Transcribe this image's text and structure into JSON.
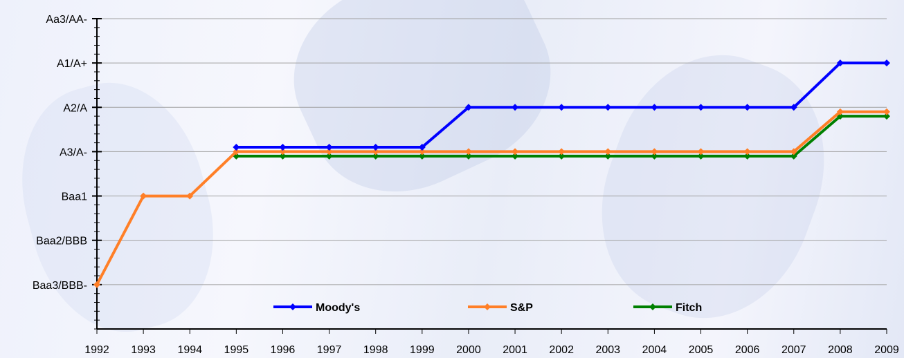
{
  "chart_data": {
    "type": "line",
    "title": "",
    "xlabel": "",
    "ylabel": "",
    "x": [
      "1992",
      "1993",
      "1994",
      "1995",
      "1996",
      "1997",
      "1998",
      "1999",
      "2000",
      "2001",
      "2002",
      "2003",
      "2004",
      "2005",
      "2006",
      "2007",
      "2008",
      "2009"
    ],
    "y_ticks": [
      "Baa3/BBB-",
      "Baa2/BBB",
      "Baa1",
      "A3/A-",
      "A2/A",
      "A1/A+",
      "Aa3/AA-"
    ],
    "y_scale_note": "rating notches, Baa3/BBB- = 1 … Aa3/AA- = 7",
    "ylim": [
      0,
      7
    ],
    "grid": true,
    "legend_position": "bottom-center",
    "series": [
      {
        "name": "Moody's",
        "color": "#0000ff",
        "values": [
          null,
          null,
          null,
          4.1,
          4.1,
          4.1,
          4.1,
          4.1,
          5,
          5,
          5,
          5,
          5,
          5,
          5,
          5,
          6,
          6
        ]
      },
      {
        "name": "S&P",
        "color": "#ff7f27",
        "values": [
          1,
          3,
          3,
          4,
          4,
          4,
          4,
          4,
          4,
          4,
          4,
          4,
          4,
          4,
          4,
          4,
          4.9,
          4.9
        ]
      },
      {
        "name": "Fitch",
        "color": "#008000",
        "values": [
          null,
          null,
          null,
          3.9,
          3.9,
          3.9,
          3.9,
          3.9,
          3.9,
          3.9,
          3.9,
          3.9,
          3.9,
          3.9,
          3.9,
          3.9,
          4.8,
          4.8
        ]
      }
    ]
  }
}
